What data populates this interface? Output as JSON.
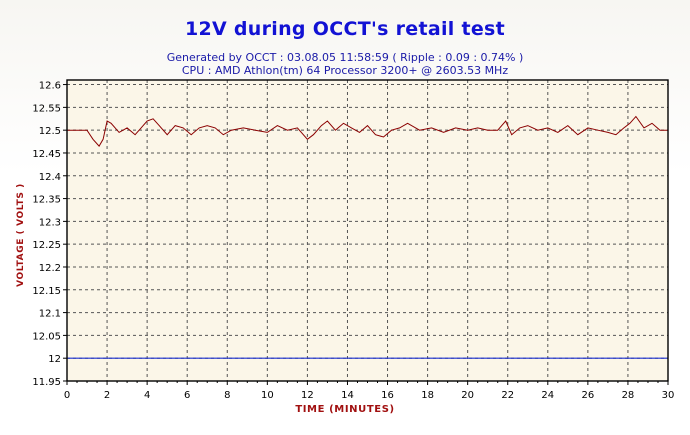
{
  "chart_data": {
    "type": "line",
    "title": "12V during OCCT's retail test",
    "subtitle_1": "Generated by OCCT : 03.08.05 11:58:59 ( Ripple : 0.09 : 0.74% )",
    "subtitle_2": "CPU : AMD Athlon(tm) 64 Processor 3200+ @ 2603.53 MHz",
    "xlabel": "TIME (MINUTES)",
    "ylabel": "VOLTAGE ( VOLTS )",
    "xlim": [
      0,
      30
    ],
    "ylim": [
      11.95,
      12.61
    ],
    "x_ticks": [
      0,
      2,
      4,
      6,
      8,
      10,
      12,
      14,
      16,
      18,
      20,
      22,
      24,
      26,
      28,
      30
    ],
    "y_ticks": [
      "11.95",
      "12",
      "12.05",
      "12.1",
      "12.15",
      "12.2",
      "12.25",
      "12.3",
      "12.35",
      "12.4",
      "12.45",
      "12.5",
      "12.55",
      "12.6"
    ],
    "grid": true,
    "colors": {
      "voltage_line": "#8b0000",
      "reference_line": "#1a2fd0",
      "plot_bg": "#fbf6e8"
    },
    "series": [
      {
        "x": [
          0,
          0.5,
          1.0,
          1.3,
          1.6,
          1.8,
          2.0,
          2.2,
          2.6,
          3.0,
          3.4,
          3.7,
          4.0,
          4.3,
          4.6,
          5.0,
          5.4,
          5.8,
          6.2,
          6.6,
          7.0,
          7.4,
          7.8,
          8.2,
          8.8,
          9.4,
          10.0,
          10.5,
          11.0,
          11.5,
          12.0,
          12.3,
          12.7,
          13.0,
          13.4,
          13.8,
          14.2,
          14.6,
          15.0,
          15.4,
          15.8,
          16.2,
          16.6,
          17.0,
          17.6,
          18.2,
          18.8,
          19.4,
          20.0,
          20.5,
          21.0,
          21.5,
          21.9,
          22.2,
          22.6,
          23.0,
          23.5,
          24.0,
          24.5,
          25.0,
          25.5,
          26.0,
          26.5,
          27.0,
          27.4,
          27.8,
          28.1,
          28.4,
          28.8,
          29.2,
          29.6,
          30.0
        ],
        "values": [
          12.5,
          12.5,
          12.5,
          12.48,
          12.465,
          12.48,
          12.52,
          12.515,
          12.495,
          12.505,
          12.49,
          12.505,
          12.52,
          12.525,
          12.51,
          12.49,
          12.51,
          12.505,
          12.49,
          12.505,
          12.51,
          12.505,
          12.49,
          12.5,
          12.505,
          12.5,
          12.495,
          12.51,
          12.5,
          12.505,
          12.48,
          12.49,
          12.51,
          12.52,
          12.5,
          12.515,
          12.505,
          12.495,
          12.51,
          12.49,
          12.485,
          12.5,
          12.505,
          12.515,
          12.5,
          12.505,
          12.495,
          12.505,
          12.5,
          12.505,
          12.5,
          12.5,
          12.52,
          12.49,
          12.505,
          12.51,
          12.5,
          12.505,
          12.495,
          12.51,
          12.49,
          12.505,
          12.5,
          12.495,
          12.49,
          12.505,
          12.515,
          12.53,
          12.505,
          12.515,
          12.5,
          12.5
        ]
      }
    ],
    "reference_line": {
      "y": 12.0
    }
  }
}
